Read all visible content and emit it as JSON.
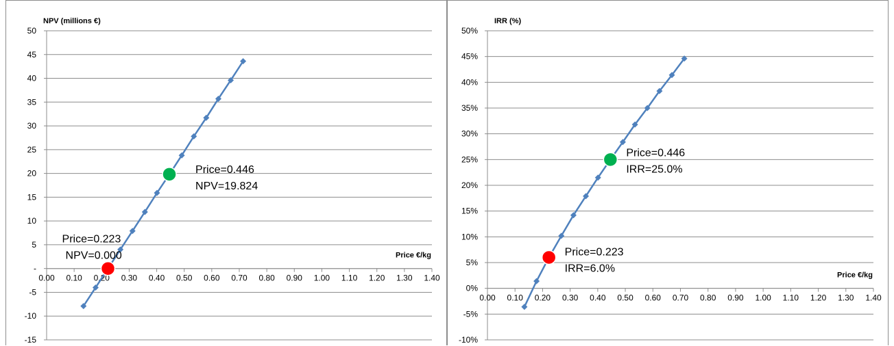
{
  "chart_data": [
    {
      "type": "line",
      "title": "",
      "ylabel": "NPV (millions €)",
      "xlabel": "Price €/kg",
      "xlim": [
        0,
        1.4
      ],
      "ylim": [
        -15,
        50
      ],
      "x_ticks": [
        0.0,
        0.1,
        0.2,
        0.3,
        0.4,
        0.5,
        0.6,
        0.7,
        0.8,
        0.9,
        1.0,
        1.1,
        1.2,
        1.3,
        1.4
      ],
      "x_tick_labels": [
        "0.00",
        "0.10",
        "0.20",
        "0.30",
        "0.40",
        "0.50",
        "0.60",
        "0.70",
        "0.80",
        "0.90",
        "1.00",
        "1.10",
        "1.20",
        "1.30",
        "1.40"
      ],
      "y_ticks": [
        -15,
        -10,
        -5,
        0,
        5,
        10,
        15,
        20,
        25,
        30,
        35,
        40,
        45,
        50
      ],
      "y_tick_labels": [
        "-15",
        "-10",
        "-5",
        "-",
        "5",
        "10",
        "15",
        "20",
        "25",
        "30",
        "35",
        "40",
        "45",
        "50"
      ],
      "grid": "horizontal",
      "series": [
        {
          "color": "#4f81bd",
          "marker": "diamond",
          "x": [
            0.134,
            0.178,
            0.223,
            0.268,
            0.312,
            0.357,
            0.401,
            0.446,
            0.491,
            0.535,
            0.58,
            0.624,
            0.669,
            0.714
          ],
          "y": [
            -7.9,
            -4.0,
            0.0,
            4.0,
            7.9,
            11.9,
            15.9,
            19.8,
            23.8,
            27.8,
            31.7,
            35.7,
            39.6,
            43.6
          ]
        }
      ],
      "highlights": [
        {
          "x": 0.223,
          "y": 0.0,
          "color": "#ff0000",
          "line1": "Price=0.223",
          "line2": "NPV=0.000"
        },
        {
          "x": 0.446,
          "y": 19.824,
          "color": "#00b050",
          "line1": "Price=0.446",
          "line2": "NPV=19.824"
        }
      ]
    },
    {
      "type": "line",
      "title": "",
      "ylabel": "IRR (%)",
      "xlabel": "Price €/kg",
      "xlim": [
        0,
        1.4
      ],
      "ylim": [
        -10,
        50
      ],
      "x_ticks": [
        0.0,
        0.1,
        0.2,
        0.3,
        0.4,
        0.5,
        0.6,
        0.7,
        0.8,
        0.9,
        1.0,
        1.1,
        1.2,
        1.3,
        1.4
      ],
      "x_tick_labels": [
        "0.00",
        "0.10",
        "0.20",
        "0.30",
        "0.40",
        "0.50",
        "0.60",
        "0.70",
        "0.80",
        "0.90",
        "1.00",
        "1.10",
        "1.20",
        "1.30",
        "1.40"
      ],
      "y_ticks": [
        -10,
        -5,
        0,
        5,
        10,
        15,
        20,
        25,
        30,
        35,
        40,
        45,
        50
      ],
      "y_tick_labels": [
        "-10%",
        "-5%",
        "0%",
        "5%",
        "10%",
        "15%",
        "20%",
        "25%",
        "30%",
        "35%",
        "40%",
        "45%",
        "50%"
      ],
      "grid": "horizontal",
      "series": [
        {
          "color": "#4f81bd",
          "marker": "diamond",
          "x": [
            0.134,
            0.178,
            0.223,
            0.268,
            0.312,
            0.357,
            0.401,
            0.446,
            0.491,
            0.535,
            0.58,
            0.624,
            0.669,
            0.714
          ],
          "y": [
            -3.6,
            1.4,
            6.0,
            10.2,
            14.2,
            17.9,
            21.5,
            25.0,
            28.4,
            31.8,
            35.0,
            38.3,
            41.4,
            44.6
          ]
        }
      ],
      "highlights": [
        {
          "x": 0.223,
          "y": 6.0,
          "color": "#ff0000",
          "line1": "Price=0.223",
          "line2": "IRR=6.0%"
        },
        {
          "x": 0.446,
          "y": 25.0,
          "color": "#00b050",
          "line1": "Price=0.446",
          "line2": "IRR=25.0%"
        }
      ]
    }
  ]
}
